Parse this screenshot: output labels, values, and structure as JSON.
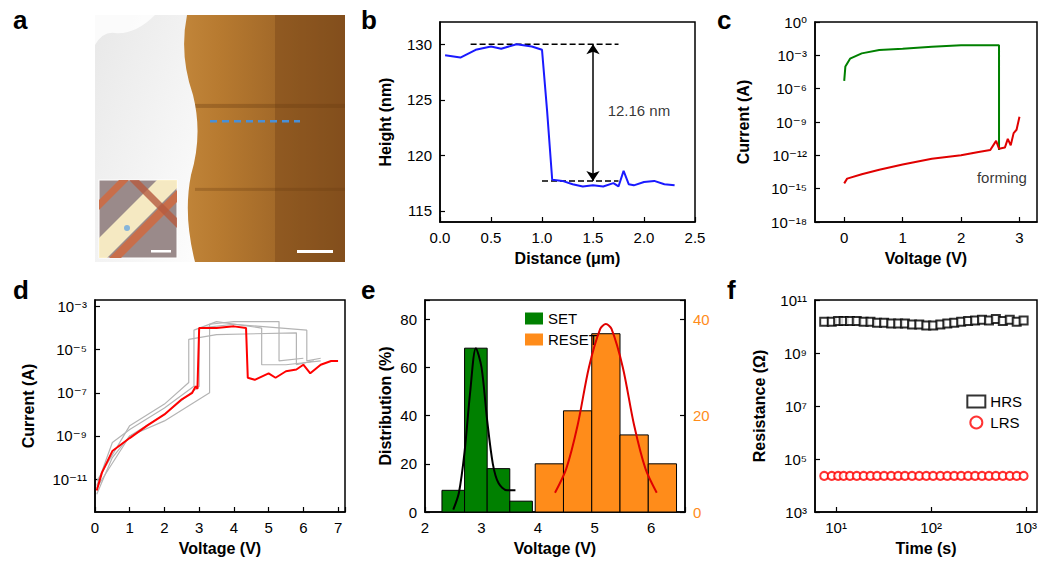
{
  "chart_data": [
    {
      "type": "image",
      "title": "a"
    },
    {
      "type": "line",
      "title": "b",
      "xlabel": "Distance (μm)",
      "ylabel": "Height (nm)",
      "xlim": [
        0,
        2.5
      ],
      "xticks": [
        {
          "value": 0,
          "label": "0.0"
        },
        {
          "value": 0.5,
          "label": "0.5"
        },
        {
          "value": 1,
          "label": "1.0"
        },
        {
          "value": 1.5,
          "label": "1.5"
        },
        {
          "value": 2,
          "label": "2.0"
        },
        {
          "value": 2.5,
          "label": "2.5"
        }
      ],
      "ylim": [
        114,
        132
      ],
      "yticks": [
        115,
        120,
        125,
        130
      ],
      "grid": false,
      "series": [
        {
          "color": "#1a1aff",
          "x": [
            0.05,
            0.2,
            0.35,
            0.5,
            0.6,
            0.75,
            0.9,
            1.0,
            1.05,
            1.1,
            1.2,
            1.3,
            1.4,
            1.5,
            1.6,
            1.7,
            1.75,
            1.8,
            1.85,
            1.9,
            2.0,
            2.1,
            2.2,
            2.3
          ],
          "values": [
            129.0,
            128.8,
            129.5,
            129.8,
            129.6,
            130.0,
            129.8,
            129.5,
            124.0,
            117.8,
            117.7,
            117.4,
            117.2,
            117.3,
            117.2,
            117.5,
            117.2,
            118.6,
            117.4,
            117.3,
            117.6,
            117.7,
            117.4,
            117.3
          ]
        }
      ],
      "reference_lines": [
        {
          "y": 130,
          "x": [
            0.3,
            1.75
          ],
          "line_style": "dashed"
        },
        {
          "y": 117.7,
          "x": [
            1.0,
            1.75
          ],
          "line_style": "dashed"
        }
      ],
      "arrows": [
        {
          "x": 1.5,
          "y": [
            117.7,
            130
          ]
        }
      ],
      "annotations": [
        {
          "text": "12.16 nm",
          "x": 1.95,
          "y": 124
        }
      ]
    },
    {
      "type": "line",
      "title": "c",
      "xlabel": "Voltage (V)",
      "ylabel": "Current (A)",
      "log": "y",
      "xlim": [
        -0.5,
        3.3
      ],
      "xticks": [
        0,
        1,
        2,
        3
      ],
      "ylim": [
        1e-18,
        1
      ],
      "yticks": [
        {
          "value": 1e-18,
          "label": "10⁻¹⁸"
        },
        {
          "value": 1e-15,
          "label": "10⁻¹⁵"
        },
        {
          "value": 1e-12,
          "label": "10⁻¹²"
        },
        {
          "value": 1e-09,
          "label": "10⁻⁹"
        },
        {
          "value": 1e-06,
          "label": "10⁻⁶"
        },
        {
          "value": 0.001,
          "label": "10⁻³"
        },
        {
          "value": 1,
          "label": "10⁰"
        }
      ],
      "grid": false,
      "series": [
        {
          "color": "#008000",
          "x": [
            0,
            0.02,
            0.1,
            0.3,
            0.6,
            1,
            1.5,
            2,
            2.3,
            2.65,
            2.65
          ],
          "values": [
            5e-06,
            0.0001,
            0.0005,
            0.0015,
            0.003,
            0.004,
            0.006,
            0.008,
            0.008,
            0.008,
            3e-12
          ]
        },
        {
          "color": "#e00000",
          "x": [
            0,
            0.05,
            0.3,
            0.6,
            1,
            1.5,
            2,
            2.3,
            2.5,
            2.6,
            2.65,
            2.75,
            2.8,
            2.85,
            2.9,
            2.95,
            3.0
          ],
          "values": [
            3e-15,
            8e-15,
            2e-14,
            5e-14,
            1.5e-13,
            5e-13,
            1e-12,
            2e-12,
            3e-12,
            2e-11,
            4e-12,
            5e-12,
            3e-11,
            8e-12,
            1e-10,
            2e-10,
            3e-09
          ]
        }
      ],
      "annotations": [
        {
          "text": "forming",
          "x": 2.7,
          "y": 1e-14
        }
      ]
    },
    {
      "type": "line",
      "title": "d",
      "xlabel": "Voltage (V)",
      "ylabel": "Current (A)",
      "log": "y",
      "xlim": [
        0,
        7.2
      ],
      "xticks": [
        0,
        1,
        2,
        3,
        4,
        5,
        6,
        7
      ],
      "ylim": [
        3e-13,
        0.002
      ],
      "yticks": [
        {
          "value": 1e-11,
          "label": "10⁻¹¹"
        },
        {
          "value": 1e-09,
          "label": "10⁻⁹"
        },
        {
          "value": 1e-07,
          "label": "10⁻⁷"
        },
        {
          "value": 1e-05,
          "label": "10⁻⁵"
        },
        {
          "value": 0.001,
          "label": "10⁻³"
        }
      ],
      "grid": false,
      "series": [
        {
          "color": "#b4b4b4",
          "x": [
            0.05,
            0.5,
            1,
            2,
            2.85,
            2.85,
            3.5,
            4.8,
            4.8,
            5.5,
            6.5
          ],
          "values": [
            5e-12,
            5e-10,
            2e-09,
            2e-08,
            2e-07,
            8e-05,
            0.0002,
            0.0001,
            2e-06,
            2e-06,
            3e-06
          ]
        },
        {
          "color": "#b4b4b4",
          "x": [
            0.05,
            0.5,
            1,
            2,
            3.3,
            3.3,
            4,
            5.3,
            5.3,
            6
          ],
          "values": [
            2e-12,
            1e-10,
            1e-09,
            5e-09,
            1e-07,
            0.00015,
            0.0002,
            0.0002,
            3e-06,
            4e-06
          ]
        },
        {
          "color": "#b4b4b4",
          "x": [
            0.05,
            1,
            2,
            2.7,
            2.7,
            3.5,
            5.8,
            5.8,
            6.3
          ],
          "values": [
            8e-12,
            3e-09,
            3e-08,
            3e-07,
            3e-05,
            5e-05,
            6e-05,
            2e-06,
            3e-06
          ]
        },
        {
          "color": "#b4b4b4",
          "x": [
            0.05,
            1,
            2,
            3.0,
            3.0,
            4,
            6.1,
            6.1,
            6.5
          ],
          "values": [
            4e-12,
            1e-09,
            1e-08,
            2e-07,
            0.0001,
            0.00015,
            8e-05,
            3e-06,
            4e-06
          ]
        },
        {
          "color": "#ff0000",
          "x": [
            0.05,
            0.2,
            0.5,
            1,
            1.5,
            2,
            2.5,
            2.8,
            2.9,
            2.95,
            3.0,
            3.5,
            4.0,
            4.35,
            4.4,
            4.6,
            5,
            5.2,
            5.5,
            5.8,
            6,
            6.2,
            6.5,
            6.8,
            7
          ],
          "values": [
            3e-12,
            2e-11,
            2e-10,
            8e-10,
            3e-09,
            1e-08,
            5e-08,
            1e-07,
            2e-07,
            1.5e-07,
            0.0001,
            0.0001,
            0.00012,
            0.0001,
            5e-07,
            4e-07,
            8e-07,
            5e-07,
            1e-06,
            1.2e-06,
            2e-06,
            8e-07,
            2e-06,
            3e-06,
            3e-06
          ]
        }
      ]
    },
    {
      "type": "histogram",
      "title": "e",
      "xlabel": "Voltage (V)",
      "ylabel": "Distribution (%)",
      "xlim": [
        2,
        6.6
      ],
      "xticks": [
        2,
        3,
        4,
        5,
        6
      ],
      "ylim": [
        0,
        88
      ],
      "yticks": [
        0,
        20,
        40,
        60,
        80
      ],
      "y2lim": [
        0,
        44
      ],
      "y2ticks": [
        0,
        20,
        40
      ],
      "grid": false,
      "legend": "top",
      "series": [
        {
          "name": "SET",
          "color": "#008000",
          "bins": [
            2.3,
            2.7,
            3.1,
            3.5,
            3.9
          ],
          "values": [
            9,
            68,
            18,
            4.5
          ]
        },
        {
          "name": "RESET",
          "color": "#ff8c1a",
          "axis": "y2",
          "bins": [
            3.95,
            4.45,
            4.95,
            5.45,
            5.95,
            6.45
          ],
          "values": [
            10,
            21,
            37,
            16,
            10
          ]
        },
        {
          "type": "line",
          "color": "#000000",
          "x": [
            2.5,
            2.6,
            2.7,
            2.8,
            2.9,
            3.0,
            3.1,
            3.2,
            3.3,
            3.45,
            3.6
          ],
          "values": [
            1,
            8,
            25,
            50,
            68,
            60,
            38,
            20,
            12,
            9,
            9
          ]
        },
        {
          "type": "line",
          "color": "#e00000",
          "axis": "y2",
          "x": [
            4.3,
            4.5,
            4.7,
            4.9,
            5.1,
            5.2,
            5.3,
            5.5,
            5.7,
            5.9,
            6.1
          ],
          "values": [
            4,
            9,
            18,
            30,
            38,
            39,
            38,
            30,
            18,
            9,
            4
          ]
        }
      ]
    },
    {
      "type": "scatter",
      "title": "f",
      "xlabel": "Time (s)",
      "ylabel": "Resistance (Ω)",
      "log": true,
      "xlim": [
        6,
        1300
      ],
      "xticks": [
        {
          "value": 10,
          "label": "10¹"
        },
        {
          "value": 100,
          "label": "10²"
        },
        {
          "value": 1000,
          "label": "10³"
        }
      ],
      "ylim": [
        1000,
        100000000000
      ],
      "yticks": [
        {
          "value": 1000,
          "label": "10³"
        },
        {
          "value": 100000,
          "label": "10⁵"
        },
        {
          "value": 10000000,
          "label": "10⁷"
        },
        {
          "value": 1000000000,
          "label": "10⁹"
        },
        {
          "value": 100000000000,
          "label": "10¹¹"
        }
      ],
      "grid": false,
      "legend": "right",
      "series": [
        {
          "name": "HRS",
          "color": "#000000",
          "marker": "square",
          "x": [
            7.5,
            9,
            10.5,
            12,
            14,
            16.5,
            19.5,
            23,
            27,
            32,
            38,
            45,
            53,
            63,
            75,
            89,
            105,
            125,
            148,
            175,
            207,
            245,
            290,
            343,
            406,
            480,
            568,
            672,
            795,
            940
          ],
          "values": [
            15000000000.0,
            15000000000.0,
            16000000000.0,
            16000000000.0,
            16000000000.0,
            16000000000.0,
            15000000000.0,
            15000000000.0,
            14000000000.0,
            14000000000.0,
            13000000000.0,
            13000000000.0,
            13000000000.0,
            12000000000.0,
            12000000000.0,
            11000000000.0,
            11000000000.0,
            12000000000.0,
            13000000000.0,
            14000000000.0,
            15000000000.0,
            16000000000.0,
            17000000000.0,
            18000000000.0,
            17000000000.0,
            19000000000.0,
            16000000000.0,
            18000000000.0,
            15000000000.0,
            17000000000.0
          ]
        },
        {
          "name": "LRS",
          "color": "#ff0000",
          "marker": "circle",
          "x": [
            7.5,
            9,
            10.5,
            12,
            14,
            16.5,
            19.5,
            23,
            27,
            32,
            38,
            45,
            53,
            63,
            75,
            89,
            105,
            125,
            148,
            175,
            207,
            245,
            290,
            343,
            406,
            480,
            568,
            672,
            795,
            940
          ],
          "values": [
            23000,
            23000,
            23000,
            23000,
            23000,
            23000,
            23000,
            23000,
            23000,
            23000,
            23000,
            23000,
            23000,
            23000,
            23000,
            23000,
            23000,
            23000,
            23000,
            23000,
            23000,
            23000,
            23000,
            23000,
            23000,
            23000,
            23000,
            23000,
            23000,
            23000
          ]
        }
      ]
    }
  ]
}
